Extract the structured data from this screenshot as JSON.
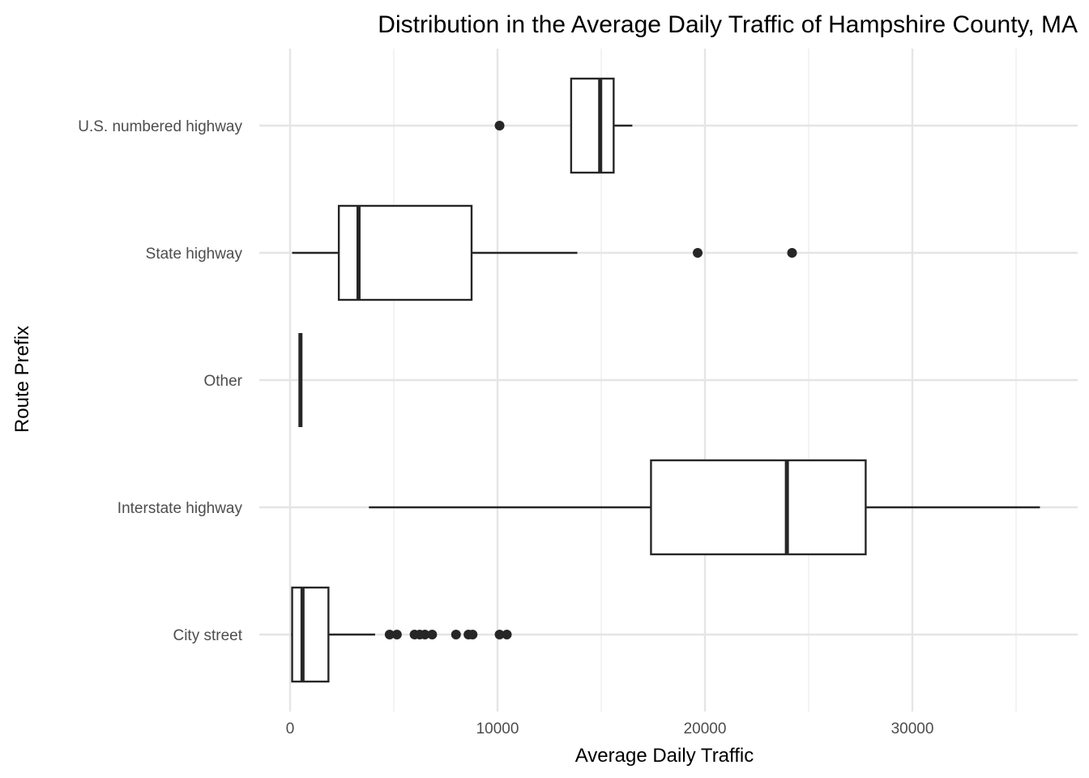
{
  "chart_data": {
    "type": "boxplot",
    "orientation": "horizontal",
    "title": "Distribution in the Average Daily Traffic of Hampshire County, MA",
    "xlabel": "Average Daily Traffic",
    "ylabel": "Route Prefix",
    "xlim": [
      -1000,
      37000
    ],
    "xticks": [
      0,
      10000,
      20000,
      30000
    ],
    "xtick_labels": [
      "0",
      "10000",
      "20000",
      "30000"
    ],
    "grid": true,
    "categories": [
      "U.S. numbered highway",
      "State highway",
      "Other",
      "Interstate highway",
      "City street"
    ],
    "boxes": [
      {
        "name": "U.S. numbered highway",
        "whisker_low": 13550,
        "q1": 13550,
        "median": 14950,
        "q3": 15600,
        "whisker_high": 16500,
        "outliers": [
          10100
        ]
      },
      {
        "name": "State highway",
        "whisker_low": 100,
        "q1": 2350,
        "median": 3300,
        "q3": 8750,
        "whisker_high": 13850,
        "outliers": [
          19650,
          24200
        ]
      },
      {
        "name": "Other",
        "whisker_low": 500,
        "q1": 500,
        "median": 500,
        "q3": 500,
        "whisker_high": 500,
        "outliers": []
      },
      {
        "name": "Interstate highway",
        "whisker_low": 3800,
        "q1": 17400,
        "median": 23950,
        "q3": 27750,
        "whisker_high": 36150,
        "outliers": []
      },
      {
        "name": "City street",
        "whisker_low": 50,
        "q1": 100,
        "median": 600,
        "q3": 1850,
        "whisker_high": 4100,
        "outliers": [
          4800,
          5150,
          6000,
          6250,
          6500,
          6850,
          8000,
          8600,
          8800,
          10100,
          10450
        ]
      }
    ]
  }
}
